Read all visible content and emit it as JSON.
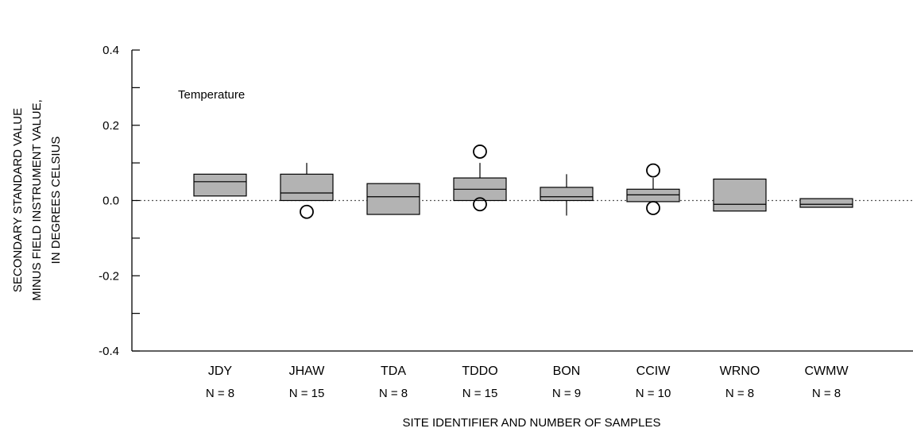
{
  "chart_data": {
    "type": "box",
    "annotation": "Temperature",
    "ylabel": [
      "SECONDARY STANDARD VALUE",
      "MINUS FIELD INSTRUMENT VALUE,",
      "IN DEGREES CELSIUS"
    ],
    "xlabel": "SITE IDENTIFIER AND NUMBER OF SAMPLES",
    "ylim": [
      -0.4,
      0.4
    ],
    "yticks": [
      -0.4,
      -0.2,
      0.0,
      0.2,
      0.4
    ],
    "ytick_labels": [
      "-0.4",
      "-0.2",
      "0.0",
      "0.2",
      "0.4"
    ],
    "reference_line": 0.0,
    "grid": false,
    "fill_color": "#b3b3b3",
    "sites": [
      {
        "name": "JDY",
        "n_label": "N = 8",
        "q1": 0.012,
        "median": 0.05,
        "q3": 0.07,
        "whisker_low": 0.012,
        "whisker_high": 0.07,
        "outliers": []
      },
      {
        "name": "JHAW",
        "n_label": "N = 15",
        "q1": 0.0,
        "median": 0.02,
        "q3": 0.07,
        "whisker_low": 0.0,
        "whisker_high": 0.1,
        "outliers": [
          -0.03
        ]
      },
      {
        "name": "TDA",
        "n_label": "N = 8",
        "q1": -0.037,
        "median": 0.01,
        "q3": 0.045,
        "whisker_low": -0.037,
        "whisker_high": 0.045,
        "outliers": []
      },
      {
        "name": "TDDO",
        "n_label": "N = 15",
        "q1": 0.0,
        "median": 0.03,
        "q3": 0.06,
        "whisker_low": 0.0,
        "whisker_high": 0.1,
        "outliers": [
          0.13,
          -0.01
        ]
      },
      {
        "name": "BON",
        "n_label": "N = 9",
        "q1": 0.0,
        "median": 0.01,
        "q3": 0.035,
        "whisker_low": -0.04,
        "whisker_high": 0.07,
        "outliers": []
      },
      {
        "name": "CCIW",
        "n_label": "N = 10",
        "q1": -0.003,
        "median": 0.015,
        "q3": 0.03,
        "whisker_low": -0.003,
        "whisker_high": 0.06,
        "outliers": [
          0.08,
          -0.02
        ]
      },
      {
        "name": "WRNO",
        "n_label": "N = 8",
        "q1": -0.028,
        "median": -0.01,
        "q3": 0.057,
        "whisker_low": -0.028,
        "whisker_high": 0.057,
        "outliers": []
      },
      {
        "name": "CWMW",
        "n_label": "N = 8",
        "q1": -0.018,
        "median": -0.01,
        "q3": 0.005,
        "whisker_low": -0.018,
        "whisker_high": 0.005,
        "outliers": []
      }
    ]
  }
}
